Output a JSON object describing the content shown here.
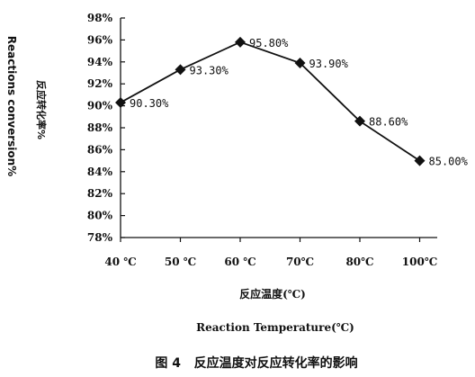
{
  "chart_data": {
    "type": "line",
    "x": [
      "40 ℃",
      "50 ℃",
      "60 ℃",
      "70℃",
      "80℃",
      "100℃"
    ],
    "series": [
      {
        "values": [
          90.3,
          93.3,
          95.8,
          93.9,
          88.6,
          85.0
        ],
        "labels": [
          "90.30%",
          "93.30%",
          "95.80%",
          "93.90%",
          "88.60%",
          "85.00%"
        ]
      }
    ],
    "ylim": [
      78,
      98
    ],
    "yticks": [
      "78%",
      "80%",
      "82%",
      "84%",
      "86%",
      "88%",
      "90%",
      "92%",
      "94%",
      "96%",
      "98%"
    ],
    "ylabel_en": "Reactions conversion%",
    "ylabel_cn": "反应转化率%",
    "xlabel_cn": "反应温度(℃)",
    "xlabel_en": "Reaction Temperature(℃)",
    "caption": "图 4   反应温度对反应转化率的影响",
    "grid": false,
    "marker": "diamond",
    "legend": "none"
  }
}
